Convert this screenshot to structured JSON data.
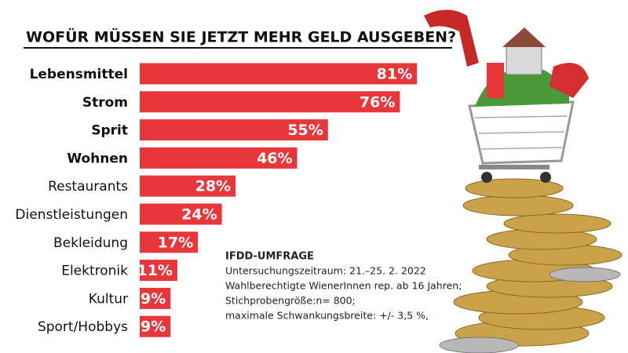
{
  "chart_data": {
    "type": "bar",
    "orientation": "horizontal",
    "title": "WOFÜR MÜSSEN SIE JETZT MEHR GELD AUSGEBEN?",
    "categories": [
      "Lebensmittel",
      "Strom",
      "Sprit",
      "Wohnen",
      "Restaurants",
      "Dienstleistungen",
      "Bekleidung",
      "Elektronik",
      "Kultur",
      "Sport/Hobbys"
    ],
    "values": [
      81,
      76,
      55,
      46,
      28,
      24,
      17,
      11,
      9,
      9
    ],
    "value_labels": [
      "81%",
      "76%",
      "55%",
      "46%",
      "28%",
      "24%",
      "17%",
      "11%",
      "9%",
      "9%"
    ],
    "bold": [
      true,
      true,
      true,
      true,
      false,
      false,
      false,
      false,
      false,
      false
    ],
    "color": "#e8373a",
    "note": {
      "title": "IFDD-UMFRAGE",
      "lines": [
        "Untersuchungszeitraum: 21.–25. 2. 2022",
        "Wahlberechtigte WienerInnen rep. ab 16 Jahren;",
        "Stichprobengröße:n= 800;",
        "maximale Schwankungsbreite: +/- 3,5 %,"
      ]
    }
  }
}
